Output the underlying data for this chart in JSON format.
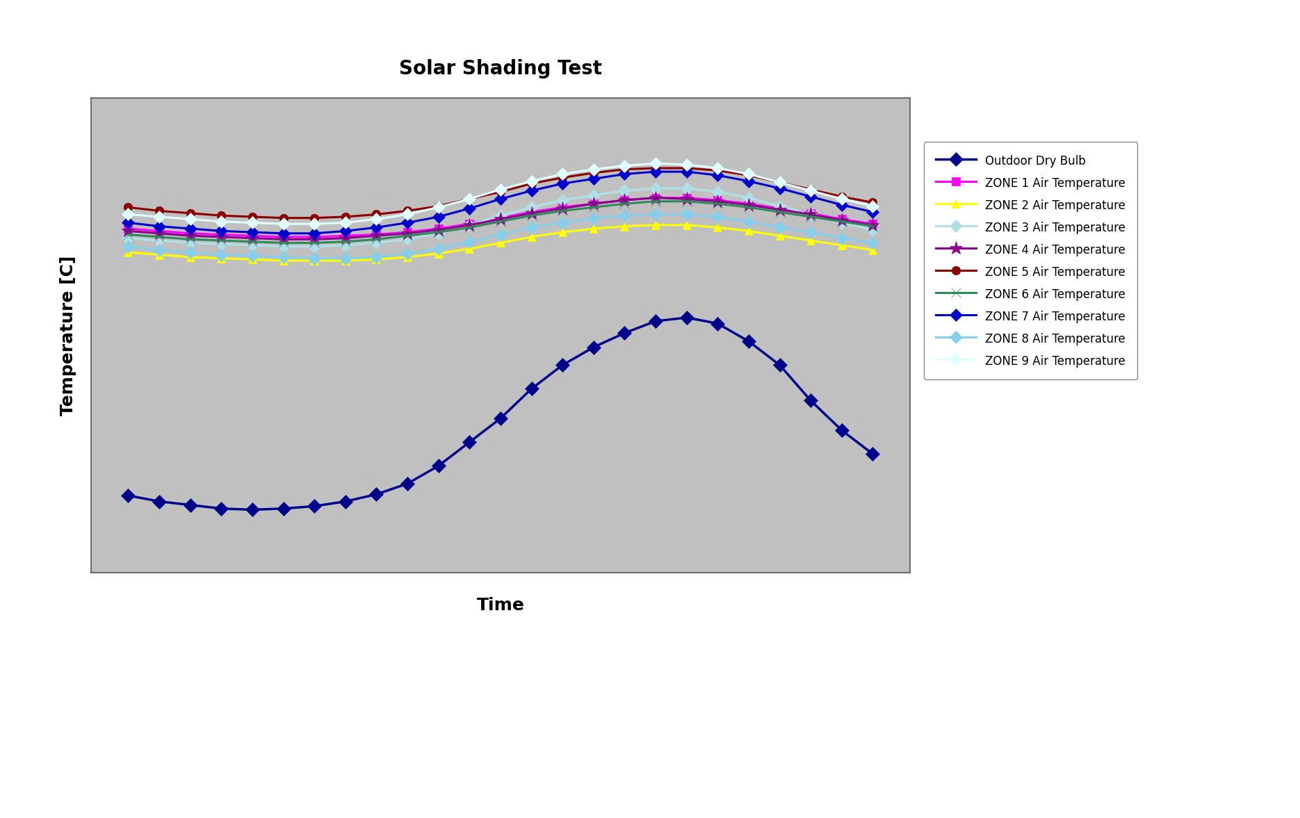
{
  "title": "Solar Shading Test",
  "xlabel": "Time",
  "ylabel": "Temperature [C]",
  "background_color": "#c0c0c0",
  "n_points": 25,
  "ylim": [
    -10,
    30
  ],
  "series": {
    "Outdoor Dry Bulb": {
      "color": "#00008B",
      "marker": "D",
      "values": [
        -3.5,
        -4.0,
        -4.3,
        -4.6,
        -4.7,
        -4.6,
        -4.4,
        -4.0,
        -3.4,
        -2.5,
        -1.0,
        1.0,
        3.0,
        5.5,
        7.5,
        9.0,
        10.2,
        11.2,
        11.5,
        11.0,
        9.5,
        7.5,
        4.5,
        2.0,
        0.0
      ]
    },
    "ZONE 1 Air Temperature": {
      "color": "#FF00FF",
      "marker": "s",
      "values": [
        19.0,
        18.8,
        18.6,
        18.5,
        18.4,
        18.3,
        18.3,
        18.4,
        18.5,
        18.7,
        19.0,
        19.4,
        19.9,
        20.4,
        20.8,
        21.1,
        21.4,
        21.6,
        21.6,
        21.4,
        21.1,
        20.7,
        20.3,
        19.8,
        19.4
      ]
    },
    "ZONE 2 Air Temperature": {
      "color": "#FFFF00",
      "marker": "^",
      "values": [
        17.0,
        16.8,
        16.6,
        16.5,
        16.4,
        16.3,
        16.3,
        16.3,
        16.4,
        16.6,
        16.9,
        17.3,
        17.8,
        18.3,
        18.7,
        19.0,
        19.2,
        19.3,
        19.3,
        19.1,
        18.8,
        18.4,
        18.0,
        17.6,
        17.2
      ]
    },
    "ZONE 3 Air Temperature": {
      "color": "#B0E0E6",
      "marker": "D",
      "values": [
        18.2,
        18.0,
        17.8,
        17.7,
        17.6,
        17.5,
        17.5,
        17.6,
        17.8,
        18.1,
        18.6,
        19.3,
        20.1,
        20.8,
        21.4,
        21.8,
        22.2,
        22.4,
        22.4,
        22.1,
        21.6,
        20.9,
        20.2,
        19.5,
        18.9
      ]
    },
    "ZONE 4 Air Temperature": {
      "color": "#8B008B",
      "marker": "*",
      "values": [
        18.8,
        18.6,
        18.4,
        18.3,
        18.2,
        18.1,
        18.1,
        18.2,
        18.4,
        18.6,
        18.9,
        19.3,
        19.8,
        20.3,
        20.7,
        21.1,
        21.4,
        21.6,
        21.5,
        21.3,
        21.0,
        20.6,
        20.2,
        19.7,
        19.3
      ]
    },
    "ZONE 5 Air Temperature": {
      "color": "#8B0000",
      "marker": "o",
      "values": [
        20.8,
        20.5,
        20.3,
        20.1,
        20.0,
        19.9,
        19.9,
        20.0,
        20.2,
        20.5,
        20.9,
        21.5,
        22.1,
        22.8,
        23.3,
        23.7,
        24.0,
        24.1,
        24.1,
        23.9,
        23.5,
        22.9,
        22.3,
        21.7,
        21.2
      ]
    },
    "ZONE 6 Air Temperature": {
      "color": "#2E8B57",
      "marker": "+",
      "values": [
        18.5,
        18.3,
        18.1,
        18.0,
        17.9,
        17.8,
        17.8,
        17.9,
        18.1,
        18.4,
        18.7,
        19.1,
        19.6,
        20.1,
        20.5,
        20.8,
        21.1,
        21.3,
        21.3,
        21.1,
        20.8,
        20.4,
        20.0,
        19.6,
        19.2
      ]
    },
    "ZONE 7 Air Temperature": {
      "color": "#0000CD",
      "marker": "D",
      "values": [
        19.5,
        19.2,
        19.0,
        18.8,
        18.7,
        18.6,
        18.6,
        18.8,
        19.1,
        19.5,
        20.0,
        20.7,
        21.5,
        22.2,
        22.8,
        23.2,
        23.6,
        23.8,
        23.8,
        23.5,
        23.0,
        22.4,
        21.7,
        21.0,
        20.4
      ]
    },
    "ZONE 8 Air Temperature": {
      "color": "#87CEEB",
      "marker": "D",
      "values": [
        17.5,
        17.2,
        17.0,
        16.8,
        16.7,
        16.6,
        16.5,
        16.5,
        16.6,
        16.9,
        17.3,
        17.9,
        18.5,
        19.1,
        19.5,
        19.9,
        20.1,
        20.2,
        20.2,
        20.0,
        19.6,
        19.1,
        18.7,
        18.2,
        17.8
      ]
    },
    "ZONE 9 Air Temperature": {
      "color": "#E0FFFF",
      "marker": "D",
      "values": [
        20.2,
        20.0,
        19.8,
        19.6,
        19.5,
        19.4,
        19.4,
        19.5,
        19.8,
        20.2,
        20.8,
        21.5,
        22.3,
        23.0,
        23.6,
        24.0,
        24.3,
        24.5,
        24.4,
        24.1,
        23.6,
        22.9,
        22.2,
        21.5,
        20.9
      ]
    }
  }
}
